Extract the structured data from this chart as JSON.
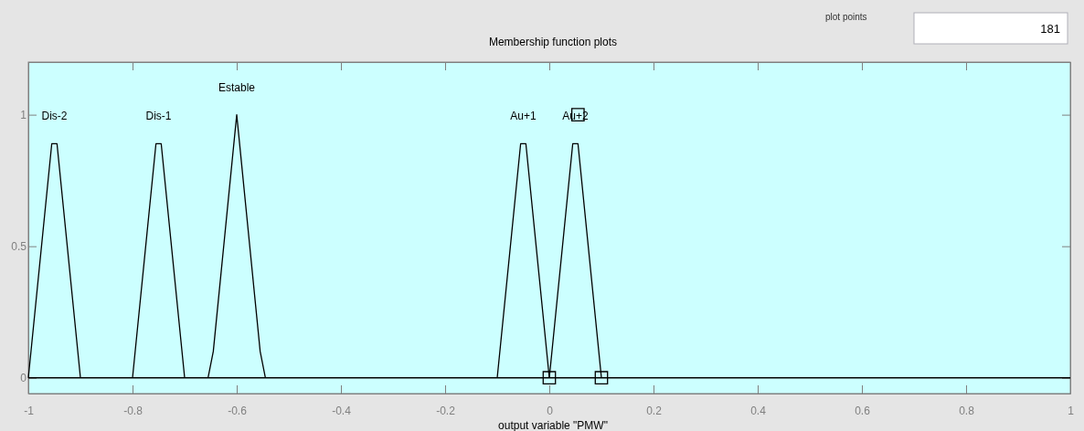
{
  "chart_data": {
    "type": "line",
    "title": "Membership function plots",
    "xlabel": "output variable \"PMW\"",
    "xlim": [
      -1,
      1
    ],
    "xticks": [
      -1,
      -0.8,
      -0.6,
      -0.4,
      -0.2,
      0,
      0.2,
      0.4,
      0.6,
      0.8,
      1
    ],
    "ylim": [
      -0.06,
      1.2
    ],
    "yticks": [
      0,
      0.5,
      1
    ],
    "marker": "none",
    "line_style": "solid",
    "ref_lines": [
      {
        "axis": "y",
        "value": 0,
        "color": "#000000"
      }
    ],
    "annotations": [
      "plot points",
      "181"
    ],
    "series": [
      {
        "name": "Dis-2",
        "color": "#000000",
        "x": [
          -1,
          -0.955,
          -0.945,
          -0.9
        ],
        "values": [
          0,
          0.89,
          0.89,
          0
        ]
      },
      {
        "name": "Dis-1",
        "color": "#000000",
        "x": [
          -0.8,
          -0.755,
          -0.745,
          -0.7
        ],
        "values": [
          0,
          0.89,
          0.89,
          0
        ]
      },
      {
        "name": "Estable",
        "color": "#000000",
        "x": [
          -0.655,
          -0.645,
          -0.6,
          -0.555,
          -0.545
        ],
        "values": [
          0,
          0.1,
          1,
          0.1,
          0
        ]
      },
      {
        "name": "Au+1",
        "color": "#000000",
        "x": [
          -0.1,
          -0.055,
          -0.045,
          0
        ],
        "values": [
          0,
          0.89,
          0.89,
          0
        ]
      },
      {
        "name": "Au+2",
        "color": "#000000",
        "x": [
          0,
          0.045,
          0.055,
          0.1
        ],
        "values": [
          0,
          0.89,
          0.89,
          0
        ]
      },
      {
        "type": "scatter",
        "marker": "square",
        "color": "#000000",
        "x": [
          0,
          0.1,
          0.055
        ],
        "values": [
          0,
          0,
          1
        ]
      }
    ]
  }
}
